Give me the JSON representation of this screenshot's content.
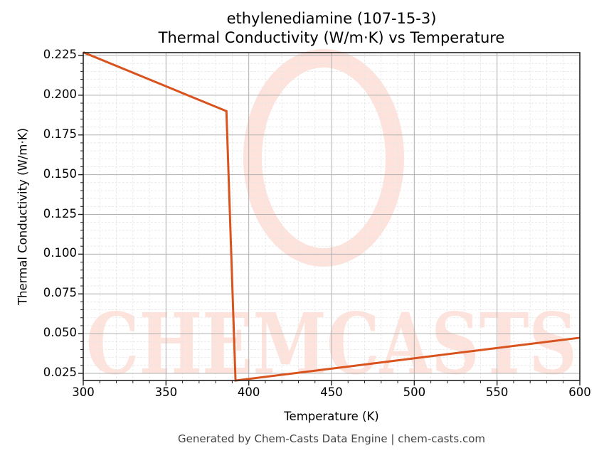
{
  "title_line1": "ethylenediamine (107-15-3)",
  "title_line2": "Thermal Conductivity (W/m·K) vs Temperature",
  "xlabel": "Temperature (K)",
  "ylabel": "Thermal Conductivity (W/m·K)",
  "footer": "Generated by Chem-Casts Data Engine | chem-casts.com",
  "watermark": "CHEMCASTS",
  "line_color": "#d9531e",
  "chart_data": {
    "type": "line",
    "title": "ethylenediamine (107-15-3) Thermal Conductivity (W/m·K) vs Temperature",
    "xlabel": "Temperature (K)",
    "ylabel": "Thermal Conductivity (W/m·K)",
    "xlim": [
      300,
      600
    ],
    "ylim": [
      0.0205,
      0.227
    ],
    "x_ticks": [
      "300",
      "350",
      "400",
      "450",
      "500",
      "550",
      "600"
    ],
    "y_ticks": [
      "0.025",
      "0.050",
      "0.075",
      "0.100",
      "0.125",
      "0.150",
      "0.175",
      "0.200",
      "0.225"
    ],
    "grid": true,
    "series": [
      {
        "name": "Thermal Conductivity",
        "x": [
          300,
          386.5,
          392,
          600
        ],
        "y": [
          0.227,
          0.19,
          0.0205,
          0.0474
        ]
      }
    ]
  }
}
